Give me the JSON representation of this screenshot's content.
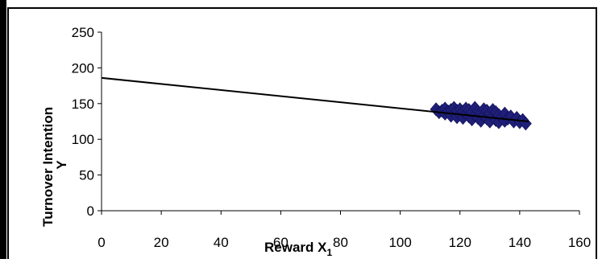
{
  "chart_data": {
    "type": "scatter",
    "title": "",
    "xlabel": "Reward X",
    "xlabel_sub": "1",
    "ylabel_lines": [
      "Turnover Intention",
      "Y"
    ],
    "xlim": [
      0,
      160
    ],
    "ylim": [
      0,
      250
    ],
    "x_ticks": [
      0,
      20,
      40,
      60,
      80,
      100,
      120,
      140,
      160
    ],
    "y_ticks": [
      0,
      50,
      100,
      150,
      200,
      250
    ],
    "grid": false,
    "legend": "none",
    "colors": {
      "points": "#1f1f7a",
      "point_edge": "#14145a",
      "line": "#000000",
      "axis": "#000000",
      "frame": "#000000"
    },
    "series": [
      {
        "kind": "scatter",
        "marker": "diamond",
        "x": [
          112,
          113,
          114,
          115,
          115,
          116,
          117,
          117,
          118,
          118,
          119,
          119,
          120,
          120,
          121,
          121,
          122,
          122,
          123,
          123,
          124,
          124,
          125,
          125,
          126,
          126,
          127,
          127,
          128,
          128,
          129,
          129,
          130,
          130,
          131,
          131,
          132,
          132,
          133,
          133,
          134,
          135,
          135,
          136,
          137,
          138,
          139,
          140,
          141,
          142
        ],
        "y": [
          142,
          138,
          140,
          136,
          143,
          139,
          133,
          141,
          137,
          144,
          131,
          140,
          135,
          142,
          130,
          139,
          136,
          143,
          132,
          141,
          128,
          138,
          134,
          144,
          130,
          139,
          126,
          137,
          133,
          142,
          129,
          140,
          125,
          136,
          132,
          141,
          127,
          138,
          124,
          134,
          131,
          126,
          136,
          129,
          132,
          125,
          130,
          124,
          127,
          122
        ]
      },
      {
        "kind": "line",
        "x": [
          0,
          143
        ],
        "y": [
          186,
          125
        ]
      }
    ]
  }
}
